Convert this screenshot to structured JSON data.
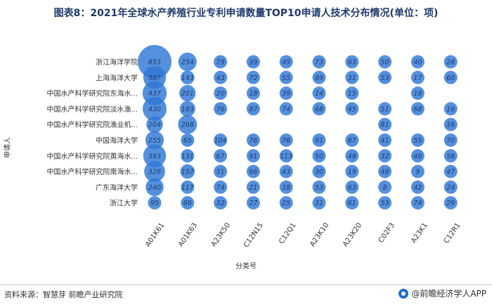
{
  "title": "图表8：2021年全球水产养殖行业专利申请数量TOP10申请人技术分布情况(单位：项)",
  "source": "资料来源：智慧芽 前瞻产业研究院",
  "brand": "@前瞻经济学人APP",
  "colors": {
    "bubble": "#2e78d6",
    "title": "#1f3b6e",
    "value_text": "#1f3b6e"
  },
  "chart_data": {
    "type": "bubble",
    "title": "图表8：2021年全球水产养殖行业专利申请数量TOP10申请人技术分布情况(单位：项)",
    "xlabel": "分类号",
    "ylabel": "申请人",
    "x_categories": [
      "A01K61",
      "A01K63",
      "A23K50",
      "C12N15",
      "C12Q1",
      "A23K10",
      "A23K20",
      "C02F3",
      "A23K1",
      "C12R1"
    ],
    "y_categories": [
      "浙江海洋学院",
      "上海海洋大学",
      "中国水产科学研究院东海水...",
      "中国水产科学研究院淡水渔...",
      "中国水产科学研究院渔业机...",
      "中国海洋大学",
      "中国水产科学研究院黄海水...",
      "中国水产科学研究院南海水...",
      "广东海洋大学",
      "浙江大学"
    ],
    "values": [
      [
        853,
        254,
        79,
        39,
        45,
        73,
        63,
        50,
        40,
        28
      ],
      [
        387,
        143,
        43,
        72,
        55,
        89,
        31,
        53,
        17,
        60
      ],
      [
        437,
        201,
        20,
        18,
        39,
        14,
        15,
        null,
        18,
        null
      ],
      [
        430,
        183,
        76,
        87,
        74,
        68,
        45,
        51,
        68,
        16
      ],
      [
        204,
        268,
        null,
        null,
        null,
        null,
        null,
        81,
        null,
        16
      ],
      [
        255,
        65,
        104,
        76,
        76,
        91,
        87,
        41,
        55,
        70
      ],
      [
        393,
        131,
        67,
        91,
        113,
        50,
        48,
        32,
        48,
        58
      ],
      [
        328,
        157,
        31,
        66,
        43,
        30,
        19,
        46,
        9,
        47
      ],
      [
        240,
        117,
        74,
        21,
        18,
        53,
        63,
        8,
        42,
        24
      ],
      [
        95,
        66,
        32,
        27,
        25,
        31,
        61,
        53,
        74,
        29
      ]
    ],
    "grid": false,
    "legend": "none"
  }
}
